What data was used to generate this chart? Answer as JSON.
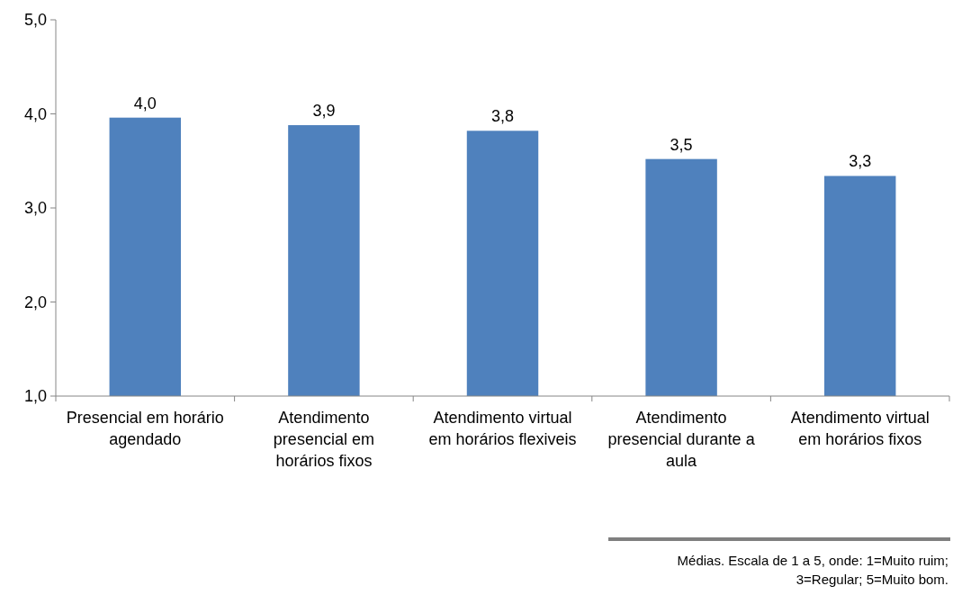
{
  "chart_data": {
    "type": "bar",
    "categories": [
      "Presencial em horário agendado",
      "Atendimento presencial em horários fixos",
      "Atendimento virtual em horários flexiveis",
      "Atendimento presencial durante a aula",
      "Atendimento virtual em horários fixos"
    ],
    "values": [
      3.96,
      3.88,
      3.82,
      3.52,
      3.34
    ],
    "value_labels": [
      "4,0",
      "3,9",
      "3,8",
      "3,5",
      "3,3"
    ],
    "color": "#4f81bd",
    "ylim": [
      1,
      5
    ],
    "yticks": [
      {
        "value": 1,
        "label": "1,0"
      },
      {
        "value": 2,
        "label": "2,0"
      },
      {
        "value": 3,
        "label": "3,0"
      },
      {
        "value": 4,
        "label": "4,0"
      },
      {
        "value": 5,
        "label": "5,0"
      }
    ],
    "annotations": [
      "Médias. Escala de 1 a 5, onde: 1=Muito ruim; 3=Regular; 5=Muito bom."
    ]
  }
}
